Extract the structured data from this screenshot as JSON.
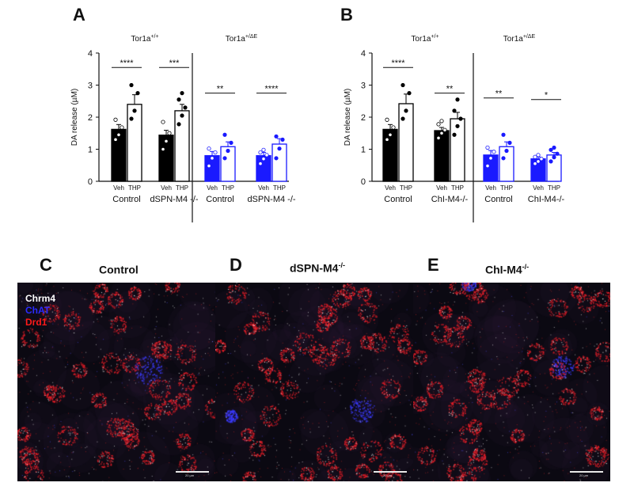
{
  "panels": {
    "A": "A",
    "B": "B",
    "C": "C",
    "D": "D",
    "E": "E"
  },
  "chart_data": [
    {
      "type": "bar",
      "panel": "A",
      "ylabel": "DA release (µM)",
      "ylim": [
        0,
        4
      ],
      "yticks": [
        "0",
        "1",
        "2",
        "3",
        "4"
      ],
      "genotype_labels": [
        {
          "base": "Tor1a",
          "sup": "+/+"
        },
        {
          "base": "Tor1a",
          "sup": "+/ΔE"
        }
      ],
      "treatment_labels": [
        "Veh",
        "THP"
      ],
      "groups": [
        {
          "label": "Control",
          "color": "#000000",
          "bars": [
            {
              "value": 1.62,
              "err": 0.15,
              "points": [
                1.3,
                1.45,
                1.68,
                1.92
              ]
            },
            {
              "value": 2.4,
              "err": 0.3,
              "points": [
                1.95,
                2.2,
                2.75,
                3.0
              ]
            }
          ],
          "sig": "****"
        },
        {
          "label": "dSPN-M4 -/-",
          "color": "#000000",
          "bars": [
            {
              "value": 1.44,
              "err": 0.15,
              "points": [
                1.0,
                1.25,
                1.5,
                1.85
              ]
            },
            {
              "value": 2.2,
              "err": 0.2,
              "points": [
                1.78,
                2.05,
                2.3,
                2.55,
                2.75
              ]
            }
          ],
          "sig": "***"
        },
        {
          "label": "Control",
          "color": "#1a1aff",
          "bars": [
            {
              "value": 0.8,
              "err": 0.13,
              "points": [
                0.48,
                0.72,
                0.9,
                1.02
              ]
            },
            {
              "value": 1.08,
              "err": 0.15,
              "points": [
                0.72,
                0.95,
                1.2,
                1.45
              ]
            }
          ],
          "sig": "**"
        },
        {
          "label": "dSPN-M4 -/-",
          "color": "#1a1aff",
          "bars": [
            {
              "value": 0.8,
              "err": 0.1,
              "points": [
                0.55,
                0.7,
                0.82,
                0.9,
                0.98
              ]
            },
            {
              "value": 1.16,
              "err": 0.17,
              "points": [
                0.72,
                1.02,
                1.3,
                1.4
              ]
            }
          ],
          "sig": "****"
        }
      ]
    },
    {
      "type": "bar",
      "panel": "B",
      "ylabel": "DA release (µM)",
      "ylim": [
        0,
        4
      ],
      "yticks": [
        "0",
        "1",
        "2",
        "3",
        "4"
      ],
      "genotype_labels": [
        {
          "base": "Tor1a",
          "sup": "+/+"
        },
        {
          "base": "Tor1a",
          "sup": "+/ΔE"
        }
      ],
      "treatment_labels": [
        "Veh",
        "THP"
      ],
      "groups": [
        {
          "label": "Control",
          "color": "#000000",
          "bars": [
            {
              "value": 1.62,
              "err": 0.15,
              "points": [
                1.3,
                1.45,
                1.68,
                1.92
              ]
            },
            {
              "value": 2.42,
              "err": 0.3,
              "points": [
                1.95,
                2.2,
                2.75,
                3.0
              ]
            }
          ],
          "sig": "****"
        },
        {
          "label": "ChI-M4-/-",
          "color": "#000000",
          "bars": [
            {
              "value": 1.58,
              "err": 0.1,
              "points": [
                1.35,
                1.5,
                1.6,
                1.78,
                1.88
              ]
            },
            {
              "value": 1.95,
              "err": 0.2,
              "points": [
                1.45,
                1.72,
                1.95,
                2.2,
                2.55
              ]
            }
          ],
          "sig": "**"
        },
        {
          "label": "Control",
          "color": "#1a1aff",
          "bars": [
            {
              "value": 0.82,
              "err": 0.14,
              "points": [
                0.48,
                0.72,
                0.92,
                1.05
              ]
            },
            {
              "value": 1.08,
              "err": 0.15,
              "points": [
                0.72,
                0.95,
                1.2,
                1.45
              ]
            }
          ],
          "sig": "**"
        },
        {
          "label": "ChI-M4-/-",
          "color": "#1a1aff",
          "bars": [
            {
              "value": 0.7,
              "err": 0.06,
              "points": [
                0.55,
                0.62,
                0.7,
                0.76,
                0.82
              ]
            },
            {
              "value": 0.82,
              "err": 0.08,
              "points": [
                0.62,
                0.75,
                0.86,
                0.98,
                1.05
              ]
            }
          ],
          "sig": "*"
        }
      ]
    }
  ],
  "micrographs": [
    {
      "panel": "C",
      "title": "Control",
      "sup": "",
      "scale_label": "20 µm"
    },
    {
      "panel": "D",
      "title": "dSPN-M4",
      "sup": "-/-",
      "scale_label": "20 µm"
    },
    {
      "panel": "E",
      "title": "ChI-M4",
      "sup": "-/-",
      "scale_label": "20 µm"
    }
  ],
  "stain_legend": [
    {
      "label": "Chrm4",
      "color": "#ffffff"
    },
    {
      "label": "ChAT",
      "color": "#2b2bff"
    },
    {
      "label": "Drd1",
      "color": "#ff1a1a"
    }
  ]
}
